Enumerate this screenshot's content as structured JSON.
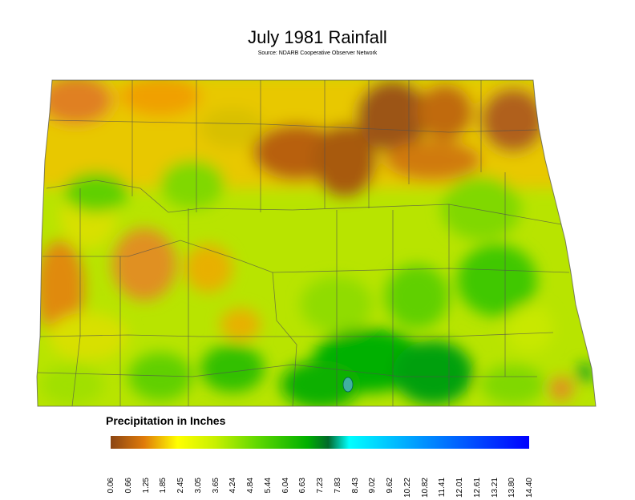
{
  "map": {
    "title": "July 1981 Rainfall",
    "source": "Source: NDARB Cooperative Observer Network",
    "legend": {
      "title": "Precipitation in Inches",
      "ticks": [
        "0.06",
        "0.66",
        "1.25",
        "1.85",
        "2.45",
        "3.05",
        "3.65",
        "4.24",
        "4.84",
        "5.44",
        "6.04",
        "6.63",
        "7.23",
        "7.83",
        "8.43",
        "9.02",
        "9.62",
        "10.22",
        "10.82",
        "11.41",
        "12.01",
        "12.61",
        "13.21",
        "13.80",
        "14.40"
      ],
      "colors": [
        "#8b4513",
        "#e07b0a",
        "#f2c200",
        "#ffff00",
        "#c8f000",
        "#7ddc00",
        "#2ec800",
        "#008c00",
        "#00ffff",
        "#0096ff",
        "#0000ff"
      ]
    }
  }
}
